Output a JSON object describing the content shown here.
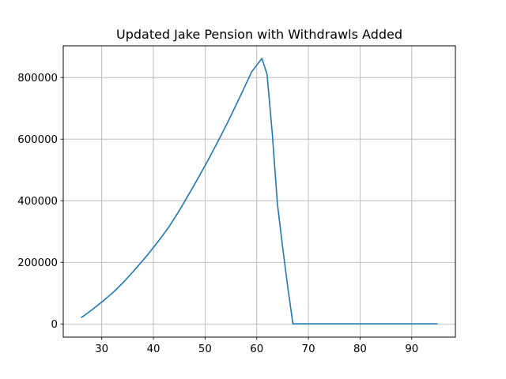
{
  "chart_data": {
    "type": "line",
    "title": "Updated Jake Pension with Withdrawls Added",
    "xlabel": "",
    "ylabel": "",
    "xlim": [
      22.55,
      98.45
    ],
    "ylim": [
      -43000,
      903000
    ],
    "xticks": [
      30,
      40,
      50,
      60,
      70,
      80,
      90
    ],
    "xtick_labels": [
      "30",
      "40",
      "50",
      "60",
      "70",
      "80",
      "90"
    ],
    "yticks": [
      0,
      200000,
      400000,
      600000,
      800000
    ],
    "ytick_labels": [
      "0",
      "200000",
      "400000",
      "600000",
      "800000"
    ],
    "grid": true,
    "series": [
      {
        "color": "#1f77b4",
        "x": [
          26,
          27,
          28,
          29,
          30,
          31,
          32,
          33,
          34,
          35,
          36,
          37,
          38,
          39,
          40,
          41,
          42,
          43,
          44,
          45,
          46,
          47,
          48,
          49,
          50,
          51,
          52,
          53,
          54,
          55,
          56,
          57,
          58,
          59,
          60,
          61,
          62,
          63,
          64,
          65,
          66,
          67,
          68,
          69,
          70,
          71,
          72,
          73,
          74,
          75,
          76,
          77,
          78,
          79,
          80,
          81,
          82,
          83,
          84,
          85,
          86,
          87,
          88,
          89,
          90,
          91,
          92,
          93,
          94,
          95
        ],
        "y": [
          20000,
          32000,
          44500,
          57500,
          71000,
          85000,
          99500,
          115000,
          132000,
          150000,
          168500,
          187500,
          207000,
          227000,
          248000,
          269500,
          292000,
          315000,
          341000,
          368000,
          396000,
          425000,
          454000,
          484000,
          514000,
          545000,
          577000,
          609000,
          642000,
          676000,
          711000,
          746000,
          782000,
          818000,
          840000,
          862000,
          810000,
          620000,
          390000,
          250000,
          120000,
          0,
          0,
          0,
          0,
          0,
          0,
          0,
          0,
          0,
          0,
          0,
          0,
          0,
          0,
          0,
          0,
          0,
          0,
          0,
          0,
          0,
          0,
          0,
          0,
          0,
          0,
          0,
          0,
          0
        ]
      }
    ]
  }
}
